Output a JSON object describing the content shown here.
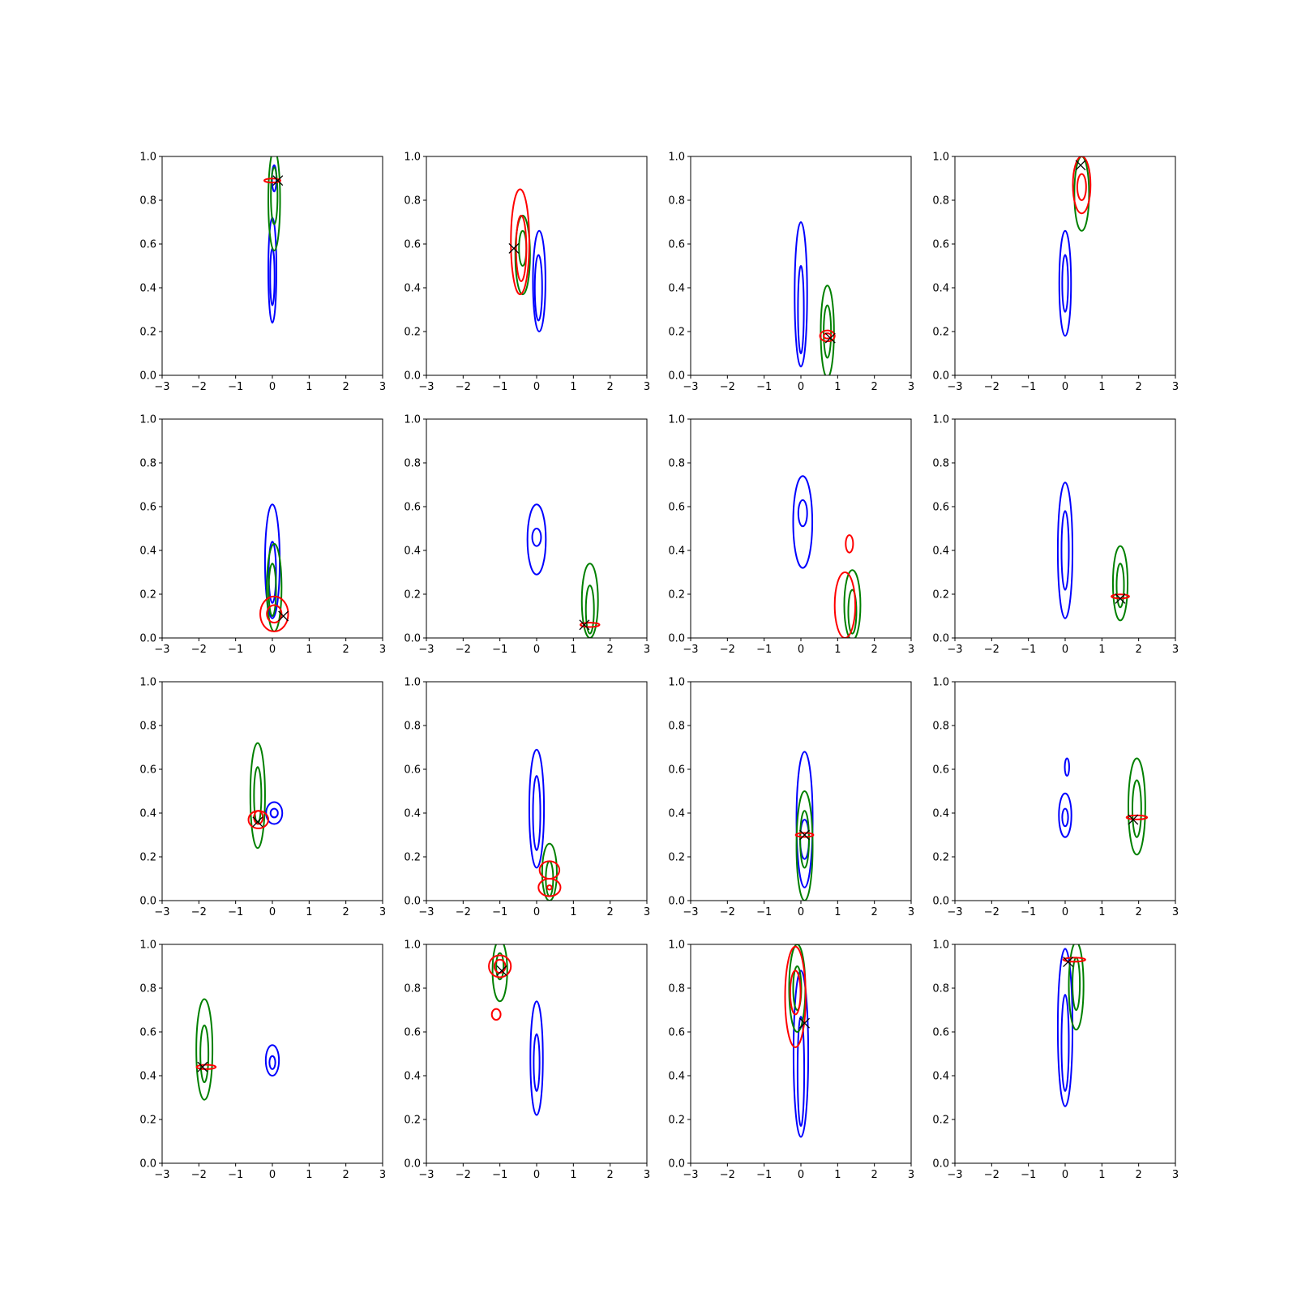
{
  "chart_data": {
    "type": "contour-grid",
    "title": "",
    "layout": {
      "rows": 4,
      "cols": 4
    },
    "xlim": [
      -3,
      3
    ],
    "ylim": [
      0,
      1
    ],
    "xticks": [
      "−3",
      "−2",
      "−1",
      "0",
      "1",
      "2",
      "3"
    ],
    "yticks": [
      "0.0",
      "0.2",
      "0.4",
      "0.6",
      "0.8",
      "1.0"
    ],
    "grid": false,
    "legend": "none",
    "colors": {
      "blue": "#0000ff",
      "green": "#008000",
      "red": "#ff0000",
      "marker": "#000000",
      "axes": "#000000"
    },
    "panels": [
      {
        "blue": [
          {
            "x": 0.0,
            "y": 0.48,
            "sx": 0.11,
            "sy": 0.24
          },
          {
            "x": 0.0,
            "y": 0.45,
            "sx": 0.06,
            "sy": 0.13
          },
          {
            "x": 0.05,
            "y": 0.9,
            "sx": 0.06,
            "sy": 0.06
          }
        ],
        "green": [
          {
            "x": 0.05,
            "y": 0.8,
            "sx": 0.16,
            "sy": 0.23
          },
          {
            "x": 0.05,
            "y": 0.82,
            "sx": 0.09,
            "sy": 0.13
          }
        ],
        "red": [
          {
            "x": 0.0,
            "y": 0.89,
            "sx": 0.22,
            "sy": 0.008
          }
        ],
        "marker": {
          "x": 0.15,
          "y": 0.89
        }
      },
      {
        "blue": [
          {
            "x": 0.07,
            "y": 0.43,
            "sx": 0.17,
            "sy": 0.23
          },
          {
            "x": 0.05,
            "y": 0.4,
            "sx": 0.1,
            "sy": 0.15
          }
        ],
        "green": [
          {
            "x": -0.38,
            "y": 0.55,
            "sx": 0.2,
            "sy": 0.18
          },
          {
            "x": -0.38,
            "y": 0.58,
            "sx": 0.1,
            "sy": 0.08
          }
        ],
        "red": [
          {
            "x": -0.45,
            "y": 0.61,
            "sx": 0.25,
            "sy": 0.24
          },
          {
            "x": -0.42,
            "y": 0.58,
            "sx": 0.14,
            "sy": 0.15
          }
        ],
        "marker": {
          "x": -0.62,
          "y": 0.58
        }
      },
      {
        "blue": [
          {
            "x": 0.0,
            "y": 0.37,
            "sx": 0.17,
            "sy": 0.33
          },
          {
            "x": 0.0,
            "y": 0.3,
            "sx": 0.08,
            "sy": 0.2
          }
        ],
        "green": [
          {
            "x": 0.72,
            "y": 0.2,
            "sx": 0.18,
            "sy": 0.21
          },
          {
            "x": 0.72,
            "y": 0.2,
            "sx": 0.1,
            "sy": 0.12
          }
        ],
        "red": [
          {
            "x": 0.72,
            "y": 0.18,
            "sx": 0.2,
            "sy": 0.025
          },
          {
            "x": 0.72,
            "y": 0.18,
            "sx": 0.1,
            "sy": 0.012
          }
        ],
        "marker": {
          "x": 0.8,
          "y": 0.17
        }
      },
      {
        "blue": [
          {
            "x": 0.0,
            "y": 0.42,
            "sx": 0.16,
            "sy": 0.24
          },
          {
            "x": 0.0,
            "y": 0.42,
            "sx": 0.08,
            "sy": 0.13
          }
        ],
        "green": [
          {
            "x": 0.45,
            "y": 0.83,
            "sx": 0.2,
            "sy": 0.17
          }
        ],
        "red": [
          {
            "x": 0.45,
            "y": 0.87,
            "sx": 0.24,
            "sy": 0.13
          },
          {
            "x": 0.45,
            "y": 0.86,
            "sx": 0.12,
            "sy": 0.06
          }
        ],
        "marker": {
          "x": 0.42,
          "y": 0.96
        }
      },
      {
        "blue": [
          {
            "x": 0.0,
            "y": 0.35,
            "sx": 0.2,
            "sy": 0.26
          },
          {
            "x": 0.0,
            "y": 0.3,
            "sx": 0.1,
            "sy": 0.14
          }
        ],
        "green": [
          {
            "x": 0.05,
            "y": 0.23,
            "sx": 0.2,
            "sy": 0.2
          },
          {
            "x": 0.0,
            "y": 0.22,
            "sx": 0.1,
            "sy": 0.12
          }
        ],
        "red": [
          {
            "x": 0.05,
            "y": 0.11,
            "sx": 0.38,
            "sy": 0.08
          },
          {
            "x": 0.05,
            "y": 0.11,
            "sx": 0.2,
            "sy": 0.04
          }
        ],
        "marker": {
          "x": 0.3,
          "y": 0.1
        }
      },
      {
        "blue": [
          {
            "x": 0.0,
            "y": 0.45,
            "sx": 0.25,
            "sy": 0.16
          },
          {
            "x": 0.0,
            "y": 0.46,
            "sx": 0.12,
            "sy": 0.04
          }
        ],
        "green": [
          {
            "x": 1.45,
            "y": 0.17,
            "sx": 0.22,
            "sy": 0.17
          },
          {
            "x": 1.45,
            "y": 0.13,
            "sx": 0.11,
            "sy": 0.11
          }
        ],
        "red": [
          {
            "x": 1.45,
            "y": 0.06,
            "sx": 0.26,
            "sy": 0.01
          }
        ],
        "marker": {
          "x": 1.3,
          "y": 0.06
        }
      },
      {
        "blue": [
          {
            "x": 0.05,
            "y": 0.53,
            "sx": 0.26,
            "sy": 0.21
          },
          {
            "x": 0.05,
            "y": 0.57,
            "sx": 0.12,
            "sy": 0.06
          }
        ],
        "green": [
          {
            "x": 1.4,
            "y": 0.15,
            "sx": 0.22,
            "sy": 0.16
          },
          {
            "x": 1.4,
            "y": 0.12,
            "sx": 0.11,
            "sy": 0.1
          }
        ],
        "red": [
          {
            "x": 1.2,
            "y": 0.15,
            "sx": 0.28,
            "sy": 0.15
          },
          {
            "x": 1.32,
            "y": 0.43,
            "sx": 0.1,
            "sy": 0.04
          }
        ],
        "marker": null
      },
      {
        "blue": [
          {
            "x": 0.0,
            "y": 0.4,
            "sx": 0.2,
            "sy": 0.31
          },
          {
            "x": 0.0,
            "y": 0.4,
            "sx": 0.1,
            "sy": 0.18
          }
        ],
        "green": [
          {
            "x": 1.5,
            "y": 0.25,
            "sx": 0.2,
            "sy": 0.17
          },
          {
            "x": 1.5,
            "y": 0.24,
            "sx": 0.1,
            "sy": 0.1
          }
        ],
        "red": [
          {
            "x": 1.5,
            "y": 0.19,
            "sx": 0.24,
            "sy": 0.008
          }
        ],
        "marker": {
          "x": 1.5,
          "y": 0.18
        }
      },
      {
        "blue": [
          {
            "x": 0.05,
            "y": 0.4,
            "sx": 0.22,
            "sy": 0.05
          },
          {
            "x": 0.05,
            "y": 0.4,
            "sx": 0.1,
            "sy": 0.02
          }
        ],
        "green": [
          {
            "x": -0.4,
            "y": 0.48,
            "sx": 0.2,
            "sy": 0.24
          },
          {
            "x": -0.4,
            "y": 0.48,
            "sx": 0.1,
            "sy": 0.13
          }
        ],
        "red": [
          {
            "x": -0.38,
            "y": 0.37,
            "sx": 0.27,
            "sy": 0.04
          },
          {
            "x": -0.38,
            "y": 0.38,
            "sx": 0.12,
            "sy": 0.03
          }
        ],
        "marker": {
          "x": -0.4,
          "y": 0.36
        }
      },
      {
        "blue": [
          {
            "x": 0.0,
            "y": 0.42,
            "sx": 0.2,
            "sy": 0.27
          },
          {
            "x": 0.0,
            "y": 0.4,
            "sx": 0.1,
            "sy": 0.17
          }
        ],
        "green": [
          {
            "x": 0.35,
            "y": 0.13,
            "sx": 0.2,
            "sy": 0.13
          },
          {
            "x": 0.35,
            "y": 0.1,
            "sx": 0.1,
            "sy": 0.08
          }
        ],
        "red": [
          {
            "x": 0.35,
            "y": 0.14,
            "sx": 0.27,
            "sy": 0.04
          },
          {
            "x": 0.35,
            "y": 0.06,
            "sx": 0.3,
            "sy": 0.04
          },
          {
            "x": 0.35,
            "y": 0.06,
            "sx": 0.06,
            "sy": 0.01
          }
        ],
        "marker": null
      },
      {
        "blue": [
          {
            "x": 0.1,
            "y": 0.37,
            "sx": 0.22,
            "sy": 0.31
          },
          {
            "x": 0.1,
            "y": 0.28,
            "sx": 0.12,
            "sy": 0.09
          }
        ],
        "green": [
          {
            "x": 0.1,
            "y": 0.25,
            "sx": 0.22,
            "sy": 0.25
          },
          {
            "x": 0.1,
            "y": 0.28,
            "sx": 0.12,
            "sy": 0.13
          }
        ],
        "red": [
          {
            "x": 0.1,
            "y": 0.3,
            "sx": 0.24,
            "sy": 0.008
          }
        ],
        "marker": {
          "x": 0.1,
          "y": 0.3
        }
      },
      {
        "blue": [
          {
            "x": 0.0,
            "y": 0.39,
            "sx": 0.17,
            "sy": 0.1
          },
          {
            "x": 0.0,
            "y": 0.38,
            "sx": 0.08,
            "sy": 0.04
          },
          {
            "x": 0.05,
            "y": 0.61,
            "sx": 0.06,
            "sy": 0.04
          }
        ],
        "green": [
          {
            "x": 1.95,
            "y": 0.43,
            "sx": 0.23,
            "sy": 0.22
          },
          {
            "x": 1.95,
            "y": 0.42,
            "sx": 0.12,
            "sy": 0.13
          }
        ],
        "red": [
          {
            "x": 1.95,
            "y": 0.38,
            "sx": 0.28,
            "sy": 0.008
          }
        ],
        "marker": {
          "x": 1.85,
          "y": 0.37
        }
      },
      {
        "blue": [
          {
            "x": 0.0,
            "y": 0.47,
            "sx": 0.18,
            "sy": 0.07
          },
          {
            "x": 0.0,
            "y": 0.46,
            "sx": 0.08,
            "sy": 0.03
          }
        ],
        "green": [
          {
            "x": -1.85,
            "y": 0.52,
            "sx": 0.22,
            "sy": 0.23
          },
          {
            "x": -1.85,
            "y": 0.5,
            "sx": 0.11,
            "sy": 0.13
          }
        ],
        "red": [
          {
            "x": -1.8,
            "y": 0.44,
            "sx": 0.26,
            "sy": 0.01
          }
        ],
        "marker": {
          "x": -1.9,
          "y": 0.44
        }
      },
      {
        "blue": [
          {
            "x": 0.0,
            "y": 0.48,
            "sx": 0.17,
            "sy": 0.26
          },
          {
            "x": 0.0,
            "y": 0.46,
            "sx": 0.08,
            "sy": 0.13
          }
        ],
        "green": [
          {
            "x": -1.0,
            "y": 0.88,
            "sx": 0.2,
            "sy": 0.14
          },
          {
            "x": -1.0,
            "y": 0.9,
            "sx": 0.1,
            "sy": 0.06
          }
        ],
        "red": [
          {
            "x": -1.0,
            "y": 0.9,
            "sx": 0.3,
            "sy": 0.05
          },
          {
            "x": -1.0,
            "y": 0.9,
            "sx": 0.15,
            "sy": 0.03
          },
          {
            "x": -1.1,
            "y": 0.68,
            "sx": 0.12,
            "sy": 0.025
          }
        ],
        "marker": {
          "x": -0.95,
          "y": 0.88
        }
      },
      {
        "blue": [
          {
            "x": 0.0,
            "y": 0.5,
            "sx": 0.2,
            "sy": 0.38
          },
          {
            "x": 0.0,
            "y": 0.42,
            "sx": 0.09,
            "sy": 0.25
          }
        ],
        "green": [
          {
            "x": -0.1,
            "y": 0.8,
            "sx": 0.22,
            "sy": 0.2
          },
          {
            "x": -0.1,
            "y": 0.8,
            "sx": 0.11,
            "sy": 0.1
          }
        ],
        "red": [
          {
            "x": -0.15,
            "y": 0.76,
            "sx": 0.28,
            "sy": 0.23
          },
          {
            "x": -0.15,
            "y": 0.78,
            "sx": 0.14,
            "sy": 0.1
          }
        ],
        "marker": {
          "x": 0.1,
          "y": 0.64
        }
      },
      {
        "blue": [
          {
            "x": 0.0,
            "y": 0.62,
            "sx": 0.2,
            "sy": 0.36
          },
          {
            "x": 0.0,
            "y": 0.55,
            "sx": 0.1,
            "sy": 0.22
          }
        ],
        "green": [
          {
            "x": 0.3,
            "y": 0.81,
            "sx": 0.2,
            "sy": 0.2
          },
          {
            "x": 0.3,
            "y": 0.82,
            "sx": 0.1,
            "sy": 0.12
          }
        ],
        "red": [
          {
            "x": 0.25,
            "y": 0.93,
            "sx": 0.3,
            "sy": 0.008
          }
        ],
        "marker": {
          "x": 0.08,
          "y": 0.92
        }
      }
    ]
  }
}
